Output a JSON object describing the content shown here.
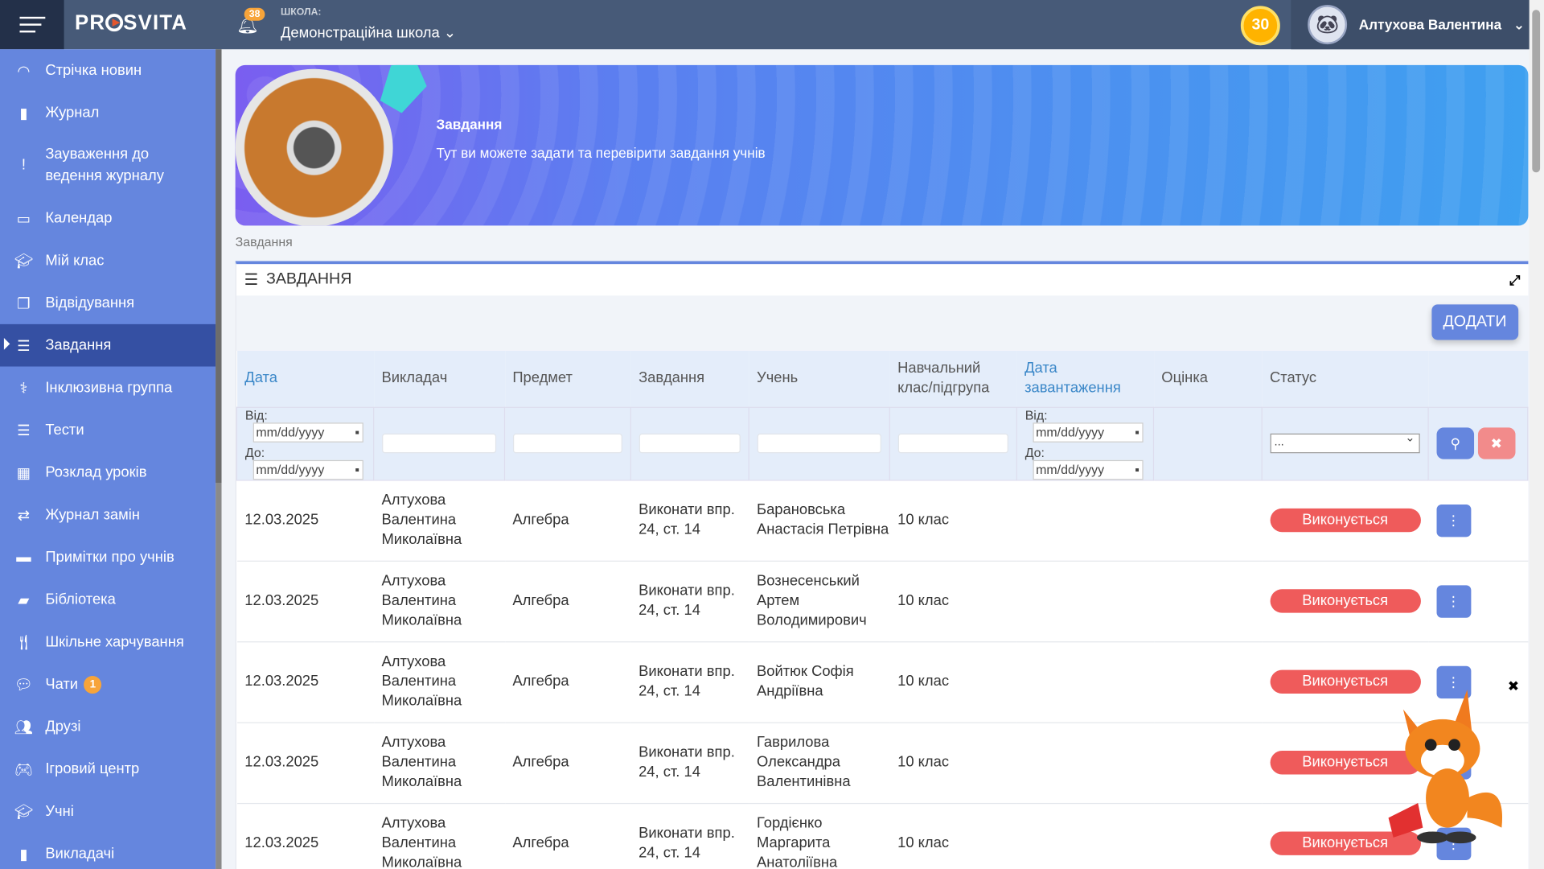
{
  "header": {
    "brand": "PROSVITA",
    "notifications": "38",
    "school_label": "ШКОЛА:",
    "school": "Демонстраційна школа",
    "coins": "30",
    "user": "Алтухова Валентина"
  },
  "sidebar": {
    "items": [
      {
        "label": "Стрічка новин",
        "icon": "rss-icon"
      },
      {
        "label": "Журнал",
        "icon": "bookmark-icon"
      },
      {
        "label": "Зауваження до ведення журналу",
        "icon": "exclamation-icon"
      },
      {
        "label": "Календар",
        "icon": "calendar-icon"
      },
      {
        "label": "Мій клас",
        "icon": "graduation-cap-icon"
      },
      {
        "label": "Відвідування",
        "icon": "documents-icon"
      },
      {
        "label": "Завдання",
        "icon": "tasks-icon",
        "active": true
      },
      {
        "label": "Інклюзивна группа",
        "icon": "stethoscope-icon"
      },
      {
        "label": "Тести",
        "icon": "list-icon"
      },
      {
        "label": "Розклад уроків",
        "icon": "calendar-grid-icon"
      },
      {
        "label": "Журнал замін",
        "icon": "swap-icon"
      },
      {
        "label": "Примітки про учнів",
        "icon": "note-icon"
      },
      {
        "label": "Бібліотека",
        "icon": "book-icon"
      },
      {
        "label": "Шкільне харчування",
        "icon": "utensils-icon"
      },
      {
        "label": "Чати",
        "icon": "chat-icon",
        "badge": "1"
      },
      {
        "label": "Друзі",
        "icon": "users-icon"
      },
      {
        "label": "Ігровий центр",
        "icon": "gamepad-icon"
      },
      {
        "label": "Учні",
        "icon": "graduation-cap-icon"
      },
      {
        "label": "Викладачі",
        "icon": "teacher-icon"
      }
    ]
  },
  "banner": {
    "title": "Завдання",
    "subtitle": "Тут ви можете задати та перевірити завдання учнів"
  },
  "breadcrumb": "Завдання",
  "panel": {
    "title": "ЗАВДАННЯ",
    "add_label": "ДОДАТИ"
  },
  "table": {
    "columns": [
      "Дата",
      "Викладач",
      "Предмет",
      "Завдання",
      "Учень",
      "Навчальний клас/підгрупа",
      "Дата завантаження",
      "Оцінка",
      "Статус"
    ],
    "filters": {
      "from": "Від:",
      "to": "До:",
      "date_placeholder": "mm/dd/yyyy",
      "status_value": "..."
    },
    "rows": [
      {
        "date": "12.03.2025",
        "teacher": "Алтухова Валентина Миколаївна",
        "subject": "Алгебра",
        "task": "Виконати впр. 24, ст. 14",
        "student": "Барановська Анастасія Петрівна",
        "class": "10 клас",
        "upload": "",
        "grade": "",
        "status": "Виконується"
      },
      {
        "date": "12.03.2025",
        "teacher": "Алтухова Валентина Миколаївна",
        "subject": "Алгебра",
        "task": "Виконати впр. 24, ст. 14",
        "student": "Вознесенський Артем Володимирович",
        "class": "10 клас",
        "upload": "",
        "grade": "",
        "status": "Виконується"
      },
      {
        "date": "12.03.2025",
        "teacher": "Алтухова Валентина Миколаївна",
        "subject": "Алгебра",
        "task": "Виконати впр. 24, ст. 14",
        "student": "Войтюк Софія Андріївна",
        "class": "10 клас",
        "upload": "",
        "grade": "",
        "status": "Виконується"
      },
      {
        "date": "12.03.2025",
        "teacher": "Алтухова Валентина Миколаївна",
        "subject": "Алгебра",
        "task": "Виконати впр. 24, ст. 14",
        "student": "Гаврилова Олександра Валентинівна",
        "class": "10 клас",
        "upload": "",
        "grade": "",
        "status": "Виконується"
      },
      {
        "date": "12.03.2025",
        "teacher": "Алтухова Валентина Миколаївна",
        "subject": "Алгебра",
        "task": "Виконати впр. 24, ст. 14",
        "student": "Гордієнко Маргарита Анатоліївна",
        "class": "10 клас",
        "upload": "",
        "grade": "",
        "status": "Виконується"
      }
    ]
  },
  "colors": {
    "topbar": "#475a78",
    "sidebar": "#6586de",
    "sidebar_active": "#3550a3",
    "status": "#ef5b5b",
    "accent": "#6586de"
  }
}
